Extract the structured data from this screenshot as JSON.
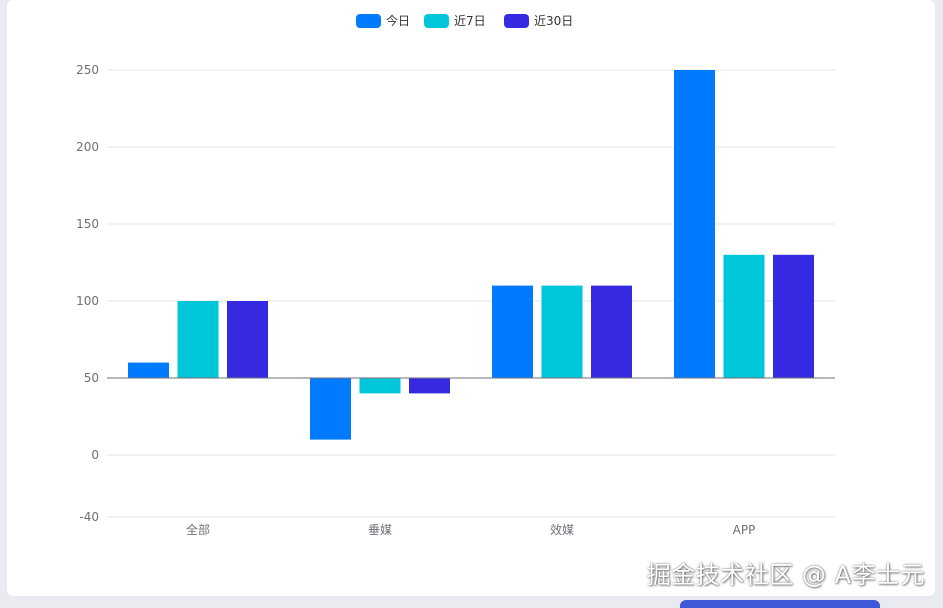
{
  "chart_data": {
    "type": "bar",
    "categories": [
      "全部",
      "垂媒",
      "效媒",
      "APP"
    ],
    "series": [
      {
        "name": "今日",
        "color": "#007aff",
        "values": [
          60,
          10,
          110,
          250
        ]
      },
      {
        "name": "近7日",
        "color": "#00c6d9",
        "values": [
          100,
          40,
          110,
          130
        ]
      },
      {
        "name": "近30日",
        "color": "#352ae2",
        "values": [
          100,
          40,
          110,
          130
        ]
      }
    ],
    "baseline": 50,
    "y_ticks": [
      -40,
      0,
      50,
      100,
      150,
      200,
      250
    ],
    "ylim": [
      -40,
      250
    ],
    "title": "",
    "xlabel": "",
    "ylabel": "",
    "grid": true,
    "legend_position": "top-center"
  },
  "watermark": "掘金技术社区 @ A李士元",
  "colors": {
    "grid": "#e6e6e6",
    "axis": "#6e7079",
    "baseline": "#6e7079"
  }
}
